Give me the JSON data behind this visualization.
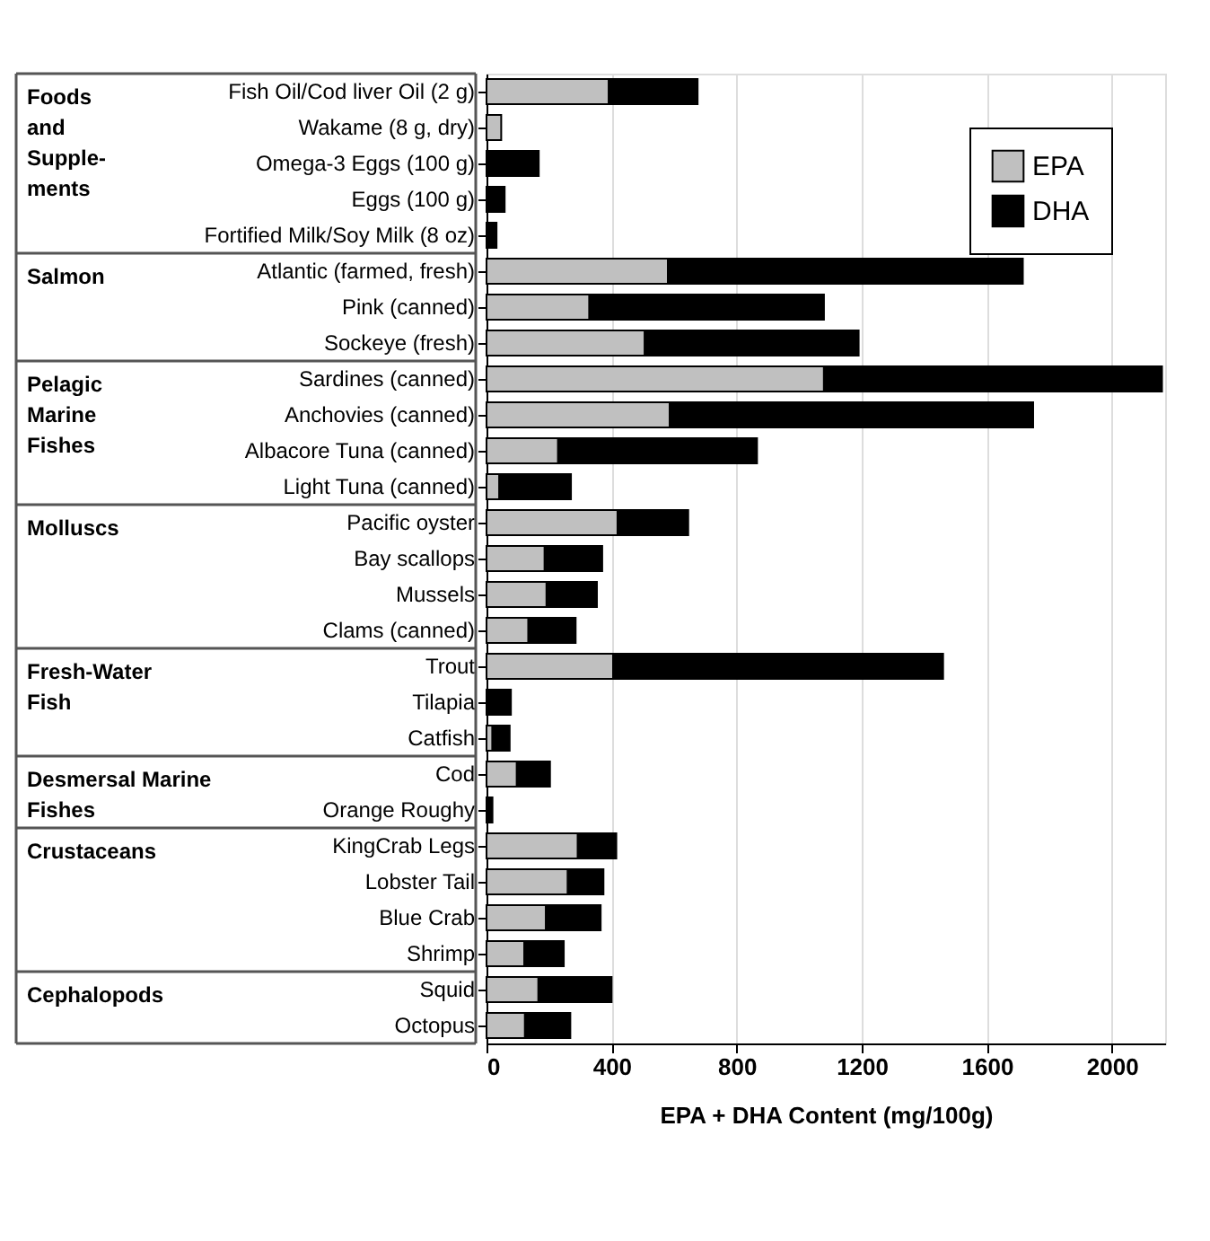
{
  "chart_data": {
    "type": "bar",
    "orientation": "horizontal",
    "stacked": true,
    "xlabel": "EPA + DHA Content (mg/100g)",
    "categories": [
      "Fish Oil/Cod liver Oil (2 g)",
      "Wakame (8 g, dry)",
      "Omega-3 Eggs (100 g)",
      "Eggs (100 g)",
      "Fortified Milk/Soy Milk (8 oz)",
      "Atlantic (farmed, fresh)",
      "Pink (canned)",
      "Sockeye (fresh)",
      "Sardines (canned)",
      "Anchovies (canned)",
      "Albacore Tuna (canned)",
      "Light Tuna (canned)",
      "Pacific oyster",
      "Bay scallops",
      "Mussels",
      "Clams (canned)",
      "Trout",
      "Tilapia",
      "Catfish",
      "Cod",
      "Orange Roughy",
      "KingCrab Legs",
      "Lobster Tail",
      "Blue Crab",
      "Shrimp",
      "Squid",
      "Octopus"
    ],
    "series": [
      {
        "name": "EPA",
        "color": "#c0c0c0",
        "values": [
          391,
          47,
          0,
          0,
          0,
          580,
          329,
          506,
          1079,
          586,
          229,
          41,
          419,
          186,
          192,
          134,
          405,
          0,
          19,
          97,
          0,
          292,
          260,
          190,
          121,
          166,
          123
        ]
      },
      {
        "name": "DHA",
        "color": "#000000",
        "values": [
          284,
          0,
          167,
          58,
          32,
          1135,
          750,
          684,
          1081,
          1162,
          636,
          229,
          226,
          184,
          161,
          151,
          1055,
          78,
          55,
          106,
          19,
          123,
          114,
          175,
          126,
          234,
          145
        ]
      }
    ],
    "xlim": [
      0,
      2170
    ],
    "xticks": [
      0,
      400,
      800,
      1200,
      1600,
      2000
    ],
    "grid": "x",
    "legend": "top right",
    "annotations": [
      "Foods\nand\nSupple-\nments",
      "Salmon",
      "Pelagic\nMarine\nFishes",
      "Molluscs",
      "Fresh-Water\nFish",
      "Desmersal Marine\nFishes",
      "Crustaceans",
      "Cephalopods"
    ]
  }
}
